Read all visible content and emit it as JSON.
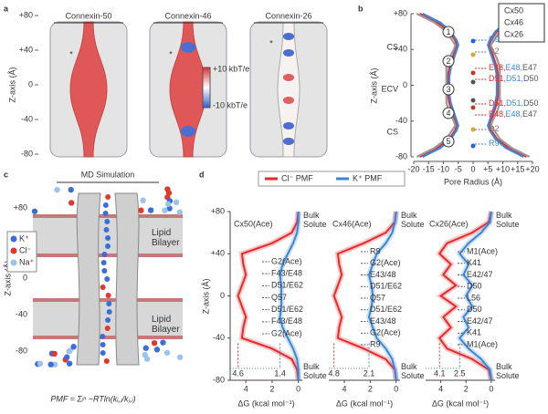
{
  "panel_labels": {
    "a": "a",
    "b": "b",
    "c": "c",
    "d": "d"
  },
  "panel_a": {
    "y_axis_label": "Z-axis (Å)",
    "yticks": [
      "+80",
      "+40",
      "0",
      "-40",
      "-80"
    ],
    "titles": [
      "Connexin-50",
      "Connexin-46",
      "Connexin-26"
    ],
    "colorbar_labels": [
      "+10 kbT/e",
      "-10 kbT/e"
    ],
    "marker": "*"
  },
  "panel_c": {
    "title": "MD Simulation",
    "y_axis_label": "Z-axis (Å)",
    "yticks": [
      "+80",
      "+40",
      "0",
      "-40",
      "-80"
    ],
    "legend": [
      {
        "name": "K⁺",
        "color": "#3a6fd8"
      },
      {
        "name": "Cl⁻",
        "color": "#e0392b"
      },
      {
        "name": "Na⁺",
        "color": "#9cc3ea"
      }
    ],
    "membrane_label": "Lipid Bilayer",
    "equation": "PMF = Σᵢⁿ −RTln(kᵢ,ⱼ/kⱼ,ᵢ)"
  },
  "chart_data": [
    {
      "type": "profile",
      "xlabel": "Pore Radius (Å)",
      "ylabel": "Z-axis (Å)",
      "xlim": [
        -20,
        20
      ],
      "xticks": [
        -20,
        -15,
        -10,
        -5,
        0,
        {
          "value": 5,
          "label": "+5"
        },
        {
          "value": 10,
          "label": "+10"
        },
        {
          "value": 15,
          "label": "+15"
        },
        {
          "value": 20,
          "label": "+20"
        }
      ],
      "ylim": [
        -80,
        80
      ],
      "yticks": [
        {
          "value": 80,
          "label": "+80"
        },
        {
          "value": 40,
          "label": "+40"
        },
        0,
        -40,
        -80
      ],
      "legend_position": "upper right",
      "z": [
        -80,
        -70,
        -60,
        -50,
        -45,
        -40,
        -30,
        -20,
        -10,
        0,
        10,
        20,
        30,
        40,
        45,
        50,
        60,
        70,
        80
      ],
      "series": [
        {
          "name": "Cx50",
          "color": "#e8292c",
          "values": [
            18,
            12,
            8,
            6,
            5.5,
            6,
            7,
            8,
            8.5,
            8.5,
            8.5,
            8,
            7,
            6,
            5.5,
            6,
            8,
            12,
            18
          ]
        },
        {
          "name": "Cx46",
          "color": "#3d86d6",
          "values": [
            17,
            11,
            7.5,
            5.5,
            5,
            5.5,
            6.5,
            7.5,
            8,
            8,
            8,
            7.5,
            6.5,
            5.5,
            5,
            5.5,
            7.5,
            11,
            17
          ]
        },
        {
          "name": "Cx26",
          "color": "#9a9a9a",
          "values": [
            19,
            13,
            9,
            7,
            6,
            6.5,
            8,
            9,
            9,
            9,
            9,
            9,
            8,
            6.5,
            6,
            7,
            9,
            13,
            19
          ]
        }
      ],
      "regions": [
        "CS",
        "ECV",
        "CS"
      ],
      "sites": [
        "1",
        "2",
        "3",
        "4",
        "5"
      ],
      "residues": [
        {
          "parts": [
            "R9"
          ],
          "colors": [
            "#3d86d6"
          ]
        },
        {
          "parts": [
            "D2"
          ],
          "colors": [
            "#777777"
          ]
        },
        {
          "parts": [
            "E48,",
            "E48,",
            "E47"
          ],
          "colors": [
            "#e8292c",
            "#3d86d6",
            "#555555"
          ]
        },
        {
          "parts": [
            "D51,",
            "D51,",
            "D50"
          ],
          "colors": [
            "#e8292c",
            "#3d86d6",
            "#555555"
          ]
        },
        {
          "parts": [
            "D51,",
            "D51,",
            "D50"
          ],
          "colors": [
            "#e8292c",
            "#3d86d6",
            "#555555"
          ]
        },
        {
          "parts": [
            "E48,",
            "E48,",
            "E47"
          ],
          "colors": [
            "#e8292c",
            "#3d86d6",
            "#555555"
          ]
        },
        {
          "parts": [
            "D2"
          ],
          "colors": [
            "#777777"
          ]
        },
        {
          "parts": [
            "R9"
          ],
          "colors": [
            "#3d86d6"
          ]
        }
      ]
    },
    {
      "type": "pmf",
      "title": "Cx50(Ace)",
      "xlabel": "ΔG (kcal mol⁻¹)",
      "ylabel": "Z-axis (Å)",
      "xlim": [
        5.2,
        -0.3
      ],
      "xticks": [
        4,
        2,
        0
      ],
      "ylim": [
        -80,
        80
      ],
      "yticks": [
        {
          "value": 80,
          "label": "+80"
        },
        {
          "value": 40,
          "label": "+40"
        },
        0,
        -40,
        -80
      ],
      "bulk_label": "Bulk Solute",
      "z": [
        -80,
        -70,
        -60,
        -50,
        -40,
        -30,
        -20,
        -10,
        0,
        10,
        20,
        30,
        40,
        50,
        60,
        70,
        80
      ],
      "series": [
        {
          "name": "Cl⁻ PMF",
          "color": "#e8292c",
          "values": [
            0,
            0.1,
            0.5,
            2,
            4.3,
            4.2,
            4.0,
            4.3,
            4.6,
            4.3,
            4.0,
            4.2,
            4.3,
            2,
            0.5,
            0.1,
            0
          ]
        },
        {
          "name": "K⁺ PMF",
          "color": "#3d86d6",
          "values": [
            0,
            0,
            0.1,
            0.4,
            0.8,
            1.2,
            1.4,
            1.3,
            1.3,
            1.3,
            1.4,
            1.2,
            0.8,
            0.4,
            0.1,
            0,
            0
          ]
        }
      ],
      "peak_values": [
        4.6,
        1.4
      ],
      "site_labels": [
        "G2(Ace)",
        "F43/E48",
        "D51/E62",
        "Q57",
        "D51/E62",
        "F43/E48",
        "G2(Ace)"
      ]
    },
    {
      "type": "pmf",
      "title": "Cx46(Ace)",
      "xlabel": "ΔG (kcal mol⁻¹)",
      "xlim": [
        5.2,
        -0.3
      ],
      "xticks": [
        4,
        2,
        0
      ],
      "ylim": [
        -80,
        80
      ],
      "bulk_label": "Bulk Solute",
      "z": [
        -80,
        -70,
        -60,
        -50,
        -40,
        -30,
        -20,
        -10,
        0,
        10,
        20,
        30,
        40,
        50,
        60,
        70,
        80
      ],
      "series": [
        {
          "color": "#e8292c",
          "values": [
            0,
            0.1,
            0.8,
            2.5,
            4.5,
            4.4,
            4.2,
            4.5,
            4.8,
            4.5,
            4.2,
            4.4,
            4.5,
            2.5,
            0.8,
            0.1,
            0
          ]
        },
        {
          "color": "#3d86d6",
          "values": [
            0,
            0.1,
            0.3,
            0.8,
            1.5,
            1.8,
            2.1,
            1.9,
            1.8,
            1.9,
            2.1,
            1.8,
            1.5,
            0.8,
            0.3,
            0.1,
            0
          ]
        }
      ],
      "peak_values": [
        4.8,
        2.1
      ],
      "site_labels": [
        "R9",
        "G2(Ace)",
        "E43/48",
        "D51/E62",
        "Q57",
        "D51/E62",
        "E43/48",
        "G2(Ace)",
        "R9"
      ]
    },
    {
      "type": "pmf",
      "title": "Cx26(Ace)",
      "xlabel": "ΔG (kcal mol⁻¹)",
      "xlim": [
        5.2,
        -0.3
      ],
      "xticks": [
        4,
        2,
        0
      ],
      "ylim": [
        -80,
        80
      ],
      "bulk_label": "Bulk Solute",
      "z": [
        -80,
        -70,
        -60,
        -50,
        -40,
        -30,
        -20,
        -10,
        0,
        10,
        20,
        30,
        40,
        50,
        60,
        70,
        80
      ],
      "series": [
        {
          "color": "#e8292c",
          "values": [
            0,
            0.2,
            1.5,
            3.5,
            4.1,
            3.2,
            3.8,
            2.8,
            4.0,
            2.8,
            3.8,
            3.2,
            4.1,
            3.5,
            1.5,
            0.2,
            0
          ]
        },
        {
          "color": "#3d86d6",
          "values": [
            0,
            0.1,
            0.8,
            1.8,
            2.5,
            1.8,
            2.2,
            1.5,
            2.0,
            1.5,
            2.2,
            1.8,
            2.5,
            1.8,
            0.8,
            0.1,
            0
          ]
        }
      ],
      "peak_values": [
        4.1,
        2.5
      ],
      "site_labels": [
        "M1(Ace)",
        "K41",
        "E42/47",
        "D50",
        "L56",
        "D50",
        "E42/47",
        "K41",
        "M1(Ace)"
      ]
    }
  ]
}
